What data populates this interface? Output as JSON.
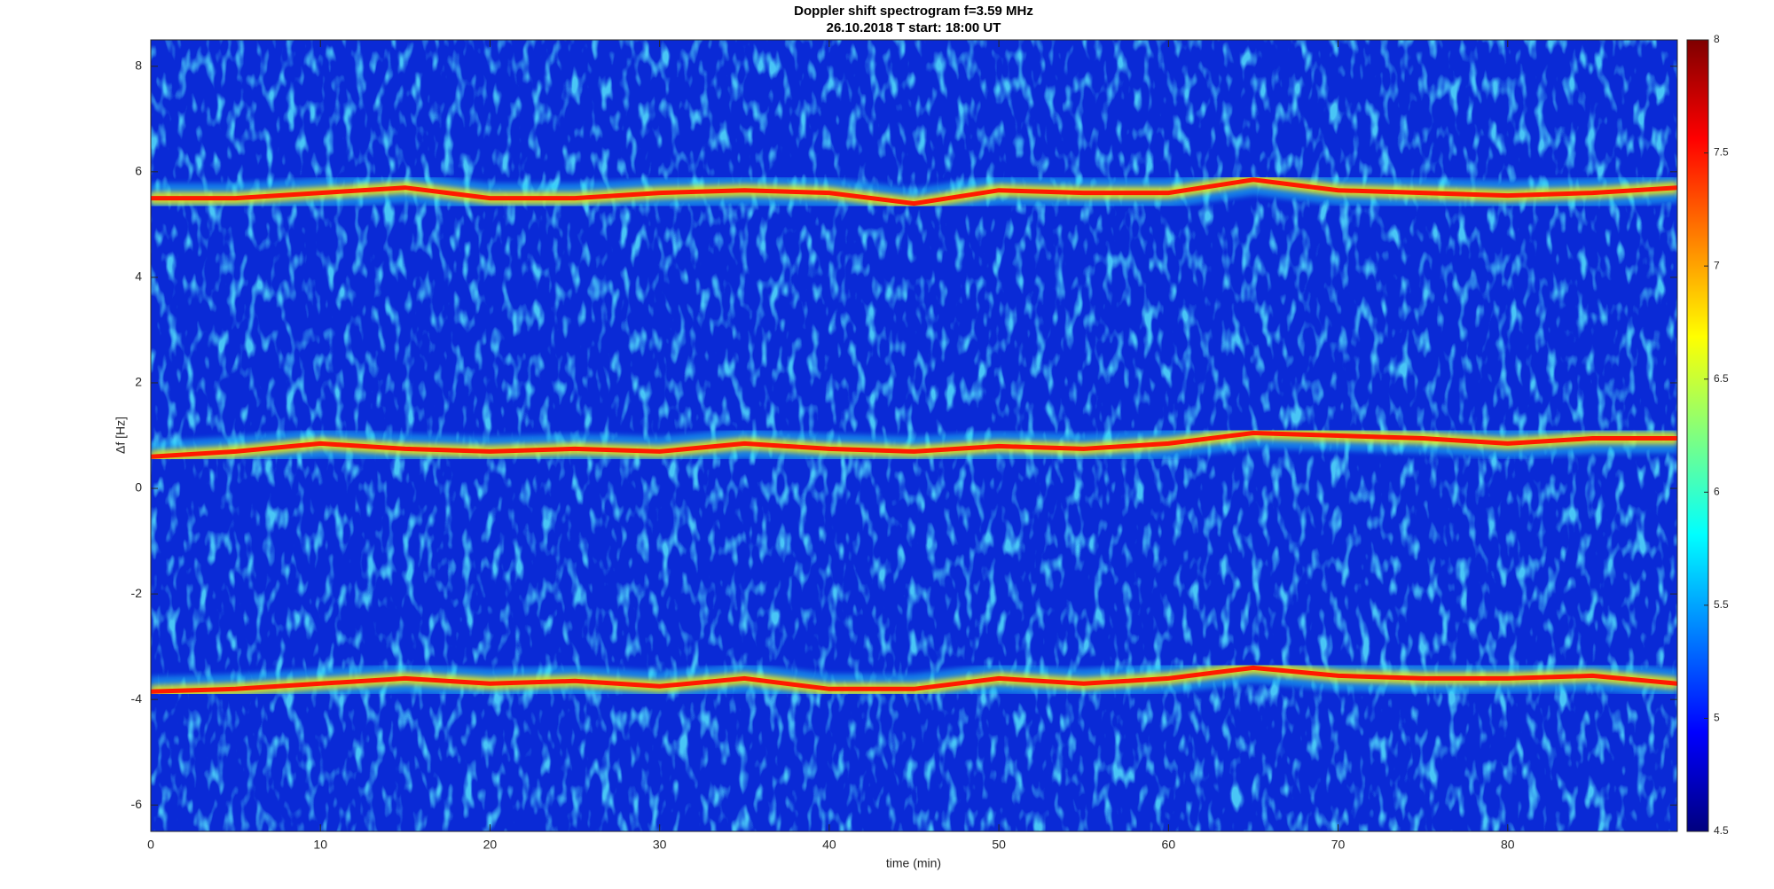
{
  "chart_data": {
    "type": "spectrogram",
    "title": "Doppler shift spectrogram f=3.59 MHz",
    "subtitle": "26.10.2018   T start: 18:00 UT",
    "x_label": "time (min)",
    "y_label": "Δf [Hz]",
    "xlim": [
      0,
      90
    ],
    "xticks": [
      0,
      10,
      20,
      30,
      40,
      50,
      60,
      70,
      80
    ],
    "ylim": [
      -6.5,
      8.5
    ],
    "yticks": [
      -6,
      -4,
      -2,
      0,
      2,
      4,
      6,
      8
    ],
    "colormap": "jet",
    "clim": [
      4.5,
      8
    ],
    "cticks": [
      4.5,
      5,
      5.5,
      6,
      6.5,
      7,
      7.5,
      8
    ],
    "x": [
      0,
      5,
      10,
      15,
      20,
      25,
      30,
      35,
      40,
      45,
      50,
      55,
      60,
      65,
      70,
      75,
      80,
      85,
      90
    ],
    "series": [
      {
        "color": "#ff1a00",
        "values": [
          5.5,
          5.5,
          5.6,
          5.7,
          5.5,
          5.5,
          5.6,
          5.65,
          5.6,
          5.4,
          5.65,
          5.6,
          5.6,
          5.85,
          5.65,
          5.6,
          5.55,
          5.6,
          5.7
        ]
      },
      {
        "color": "#ff1a00",
        "values": [
          0.6,
          0.7,
          0.85,
          0.75,
          0.7,
          0.75,
          0.7,
          0.85,
          0.75,
          0.7,
          0.8,
          0.75,
          0.85,
          1.05,
          1.0,
          0.95,
          0.85,
          0.95,
          0.95
        ]
      },
      {
        "color": "#ff1a00",
        "values": [
          -3.85,
          -3.8,
          -3.7,
          -3.6,
          -3.7,
          -3.65,
          -3.75,
          -3.6,
          -3.8,
          -3.8,
          -3.6,
          -3.7,
          -3.6,
          -3.4,
          -3.55,
          -3.6,
          -3.6,
          -3.55,
          -3.7
        ]
      }
    ]
  }
}
